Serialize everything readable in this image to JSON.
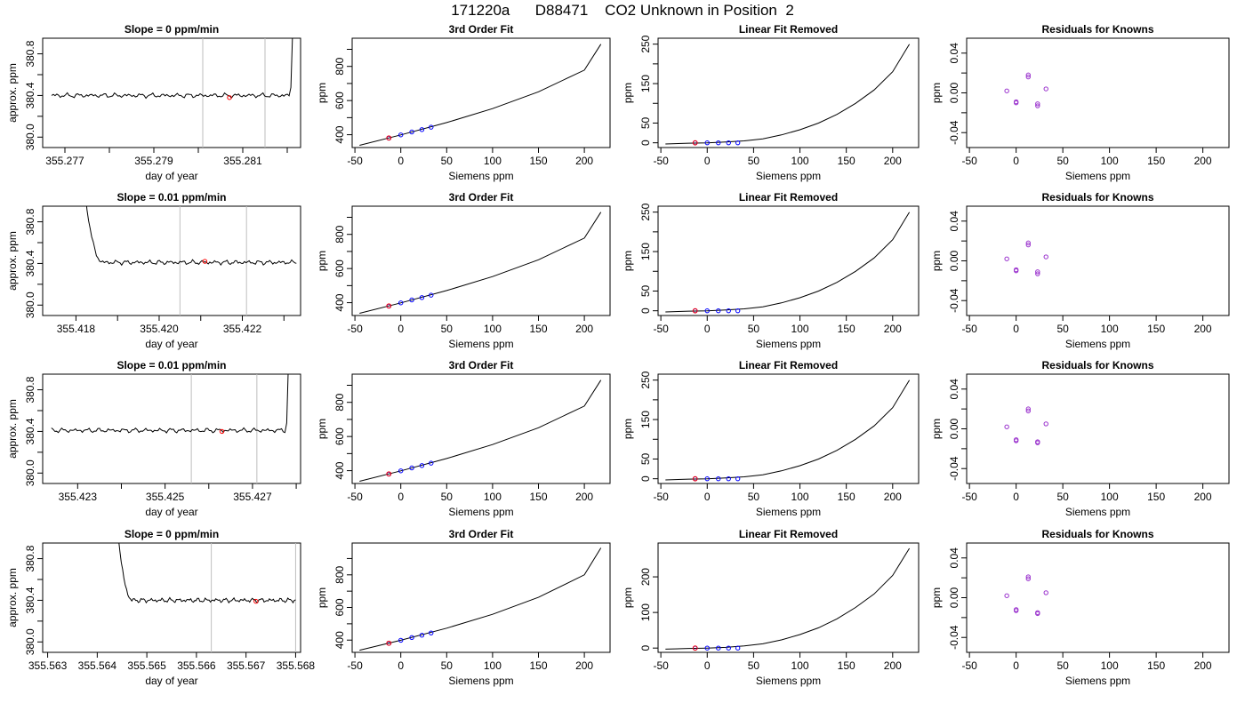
{
  "page_title": "171220a      D88471    CO2 Unknown in Position  2",
  "colors": {
    "line": "#000000",
    "marker": "#ff0000",
    "known": "#0000ff",
    "residual": "#9a32cd",
    "vline": "#bebebe"
  },
  "chart_data": [
    {
      "type": "line",
      "title": "Slope =  0  ppm/min",
      "xlabel": "day of year",
      "ylabel": "approx. ppm",
      "xlim": [
        355.2765,
        355.2823
      ],
      "ylim": [
        379.9,
        380.95
      ],
      "xticks": [
        355.277,
        355.278,
        355.279,
        355.28,
        355.281,
        355.282
      ],
      "xticklabels": [
        "355.277",
        "",
        "355.279",
        "",
        "355.281",
        ""
      ],
      "yticks": [
        380.0,
        380.2,
        380.4,
        380.6,
        380.8
      ],
      "yticklabels": [
        "380.0",
        "",
        "380.4",
        "",
        "380.8"
      ],
      "vlines": [
        355.2801,
        355.2815
      ],
      "series_x_range": [
        355.2767,
        355.2822
      ],
      "series_level": 380.4,
      "rise": {
        "side": "right",
        "at": 355.2821,
        "to": 381.0
      },
      "marker": [
        355.2807,
        380.38
      ]
    },
    {
      "type": "scatter",
      "title": "3rd Order Fit",
      "xlabel": "Siemens ppm",
      "ylabel": "ppm",
      "xlim": [
        -53,
        228
      ],
      "ylim": [
        325,
        965
      ],
      "xticks": [
        -50,
        0,
        50,
        100,
        150,
        200
      ],
      "xticklabels": [
        "-50",
        "0",
        "50",
        "100",
        "150",
        "200"
      ],
      "yticks": [
        400,
        500,
        600,
        700,
        800,
        900
      ],
      "yticklabels": [
        "400",
        "",
        "600",
        "",
        "800",
        ""
      ],
      "curve": {
        "x": [
          -45,
          0,
          50,
          100,
          150,
          200,
          218
        ],
        "y": [
          338,
          399,
          471,
          553,
          651,
          778,
          930
        ]
      },
      "knowns": {
        "x": [
          -13,
          0,
          12,
          23,
          33
        ],
        "y": [
          380,
          399,
          416,
          430,
          444
        ]
      },
      "unknown": {
        "x": [
          -13
        ],
        "y": [
          381
        ]
      }
    },
    {
      "type": "scatter",
      "title": "Linear Fit Removed",
      "xlabel": "Siemens ppm",
      "ylabel": "ppm",
      "xlim": [
        -53,
        228
      ],
      "ylim": [
        -12,
        265
      ],
      "xticks": [
        -50,
        0,
        50,
        100,
        150,
        200
      ],
      "xticklabels": [
        "-50",
        "0",
        "50",
        "100",
        "150",
        "200"
      ],
      "yticks": [
        0,
        50,
        100,
        150,
        200,
        250
      ],
      "yticklabels": [
        "0",
        "50",
        "",
        "150",
        "",
        "250"
      ],
      "curve": {
        "x": [
          -45,
          -20,
          0,
          20,
          40,
          60,
          80,
          100,
          120,
          140,
          160,
          180,
          200,
          218
        ],
        "y": [
          -3,
          -1,
          0,
          2,
          5,
          10,
          20,
          33,
          50,
          72,
          100,
          134,
          180,
          250
        ]
      },
      "knowns": {
        "x": [
          -13,
          0,
          12,
          23,
          33
        ],
        "y": [
          0,
          0,
          0,
          0,
          0
        ]
      },
      "unknown": {
        "x": [
          -13
        ],
        "y": [
          0
        ]
      }
    },
    {
      "type": "scatter",
      "title": "Residuals for Knowns",
      "xlabel": "Siemens ppm",
      "ylabel": "ppm",
      "xlim": [
        -53,
        228
      ],
      "ylim": [
        -0.055,
        0.055
      ],
      "xticks": [
        -50,
        0,
        50,
        100,
        150,
        200
      ],
      "xticklabels": [
        "-50",
        "0",
        "50",
        "100",
        "150",
        "200"
      ],
      "yticks": [
        -0.04,
        -0.02,
        0,
        0.02,
        0.04
      ],
      "yticklabels": [
        "-0.04",
        "",
        "0.00",
        "",
        "0.04"
      ],
      "knowns": {
        "x": [
          -10,
          0,
          0,
          13,
          13,
          23,
          23,
          32
        ],
        "y": [
          0.002,
          -0.009,
          -0.01,
          0.018,
          0.016,
          -0.011,
          -0.013,
          0.004
        ]
      }
    },
    {
      "type": "line",
      "title": "Slope =  0.01  ppm/min",
      "xlabel": "day of year",
      "ylabel": "approx. ppm",
      "xlim": [
        355.4172,
        355.4234
      ],
      "ylim": [
        379.9,
        380.95
      ],
      "xticks": [
        355.418,
        355.419,
        355.42,
        355.421,
        355.422,
        355.423
      ],
      "xticklabels": [
        "355.418",
        "",
        "355.420",
        "",
        "355.422",
        ""
      ],
      "yticks": [
        380.0,
        380.2,
        380.4,
        380.6,
        380.8
      ],
      "yticklabels": [
        "380.0",
        "",
        "380.4",
        "",
        "380.8"
      ],
      "vlines": [
        355.4205,
        355.4221
      ],
      "series_x_range": [
        355.418,
        355.4233
      ],
      "series_level": 380.41,
      "rise": {
        "side": "left",
        "at": 355.4182,
        "to": 381.0
      },
      "marker": [
        355.4211,
        380.42
      ]
    },
    {
      "type": "scatter",
      "title": "3rd Order Fit",
      "xlabel": "Siemens ppm",
      "ylabel": "ppm",
      "xlim": [
        -53,
        228
      ],
      "ylim": [
        325,
        965
      ],
      "xticks": [
        -50,
        0,
        50,
        100,
        150,
        200
      ],
      "xticklabels": [
        "-50",
        "0",
        "50",
        "100",
        "150",
        "200"
      ],
      "yticks": [
        400,
        500,
        600,
        700,
        800,
        900
      ],
      "yticklabels": [
        "400",
        "",
        "600",
        "",
        "800",
        ""
      ],
      "curve": {
        "x": [
          -45,
          0,
          50,
          100,
          150,
          200,
          218
        ],
        "y": [
          338,
          399,
          471,
          553,
          651,
          778,
          930
        ]
      },
      "knowns": {
        "x": [
          -13,
          0,
          12,
          23,
          33
        ],
        "y": [
          380,
          399,
          416,
          430,
          444
        ]
      },
      "unknown": {
        "x": [
          -13
        ],
        "y": [
          381
        ]
      }
    },
    {
      "type": "scatter",
      "title": "Linear Fit Removed",
      "xlabel": "Siemens ppm",
      "ylabel": "ppm",
      "xlim": [
        -53,
        228
      ],
      "ylim": [
        -12,
        265
      ],
      "xticks": [
        -50,
        0,
        50,
        100,
        150,
        200
      ],
      "xticklabels": [
        "-50",
        "0",
        "50",
        "100",
        "150",
        "200"
      ],
      "yticks": [
        0,
        50,
        100,
        150,
        200,
        250
      ],
      "yticklabels": [
        "0",
        "50",
        "",
        "150",
        "",
        "250"
      ],
      "curve": {
        "x": [
          -45,
          -20,
          0,
          20,
          40,
          60,
          80,
          100,
          120,
          140,
          160,
          180,
          200,
          218
        ],
        "y": [
          -3,
          -1,
          0,
          2,
          5,
          10,
          20,
          33,
          50,
          72,
          100,
          134,
          180,
          250
        ]
      },
      "knowns": {
        "x": [
          -13,
          0,
          12,
          23,
          33
        ],
        "y": [
          0,
          0,
          0,
          0,
          0
        ]
      },
      "unknown": {
        "x": [
          -13
        ],
        "y": [
          0
        ]
      }
    },
    {
      "type": "scatter",
      "title": "Residuals for Knowns",
      "xlabel": "Siemens ppm",
      "ylabel": "ppm",
      "xlim": [
        -53,
        228
      ],
      "ylim": [
        -0.055,
        0.055
      ],
      "xticks": [
        -50,
        0,
        50,
        100,
        150,
        200
      ],
      "xticklabels": [
        "-50",
        "0",
        "50",
        "100",
        "150",
        "200"
      ],
      "yticks": [
        -0.04,
        -0.02,
        0,
        0.02,
        0.04
      ],
      "yticklabels": [
        "-0.04",
        "",
        "0.00",
        "",
        "0.04"
      ],
      "knowns": {
        "x": [
          -10,
          0,
          0,
          13,
          13,
          23,
          23,
          32
        ],
        "y": [
          0.002,
          -0.009,
          -0.01,
          0.018,
          0.016,
          -0.011,
          -0.013,
          0.004
        ]
      }
    },
    {
      "type": "line",
      "title": "Slope =  0.01  ppm/min",
      "xlabel": "day of year",
      "ylabel": "approx. ppm",
      "xlim": [
        355.4222,
        355.4281
      ],
      "ylim": [
        379.9,
        380.95
      ],
      "xticks": [
        355.423,
        355.424,
        355.425,
        355.426,
        355.427,
        355.428
      ],
      "xticklabels": [
        "355.423",
        "",
        "355.425",
        "",
        "355.427",
        ""
      ],
      "yticks": [
        380.0,
        380.2,
        380.4,
        380.6,
        380.8
      ],
      "yticklabels": [
        "380.0",
        "",
        "380.4",
        "",
        "380.8"
      ],
      "vlines": [
        355.4256,
        355.4271
      ],
      "series_x_range": [
        355.4224,
        355.4279
      ],
      "series_level": 380.41,
      "rise": {
        "side": "right",
        "at": 355.4278,
        "to": 381.0
      },
      "marker": [
        355.4263,
        380.4
      ]
    },
    {
      "type": "scatter",
      "title": "3rd Order Fit",
      "xlabel": "Siemens ppm",
      "ylabel": "ppm",
      "xlim": [
        -53,
        228
      ],
      "ylim": [
        325,
        965
      ],
      "xticks": [
        -50,
        0,
        50,
        100,
        150,
        200
      ],
      "xticklabels": [
        "-50",
        "0",
        "50",
        "100",
        "150",
        "200"
      ],
      "yticks": [
        400,
        500,
        600,
        700,
        800,
        900
      ],
      "yticklabels": [
        "400",
        "",
        "600",
        "",
        "800",
        ""
      ],
      "curve": {
        "x": [
          -45,
          0,
          50,
          100,
          150,
          200,
          218
        ],
        "y": [
          338,
          399,
          471,
          553,
          651,
          778,
          930
        ]
      },
      "knowns": {
        "x": [
          -13,
          0,
          12,
          23,
          33
        ],
        "y": [
          380,
          399,
          416,
          430,
          444
        ]
      },
      "unknown": {
        "x": [
          -13
        ],
        "y": [
          381
        ]
      }
    },
    {
      "type": "scatter",
      "title": "Linear Fit Removed",
      "xlabel": "Siemens ppm",
      "ylabel": "ppm",
      "xlim": [
        -53,
        228
      ],
      "ylim": [
        -12,
        265
      ],
      "xticks": [
        -50,
        0,
        50,
        100,
        150,
        200
      ],
      "xticklabels": [
        "-50",
        "0",
        "50",
        "100",
        "150",
        "200"
      ],
      "yticks": [
        0,
        50,
        100,
        150,
        200,
        250
      ],
      "yticklabels": [
        "0",
        "50",
        "",
        "150",
        "",
        "250"
      ],
      "curve": {
        "x": [
          -45,
          -20,
          0,
          20,
          40,
          60,
          80,
          100,
          120,
          140,
          160,
          180,
          200,
          218
        ],
        "y": [
          -3,
          -1,
          0,
          2,
          5,
          10,
          20,
          33,
          50,
          72,
          100,
          134,
          180,
          250
        ]
      },
      "knowns": {
        "x": [
          -13,
          0,
          12,
          23,
          33
        ],
        "y": [
          0,
          0,
          0,
          0,
          0
        ]
      },
      "unknown": {
        "x": [
          -13
        ],
        "y": [
          0
        ]
      }
    },
    {
      "type": "scatter",
      "title": "Residuals for Knowns",
      "xlabel": "Siemens ppm",
      "ylabel": "ppm",
      "xlim": [
        -53,
        228
      ],
      "ylim": [
        -0.055,
        0.055
      ],
      "xticks": [
        -50,
        0,
        50,
        100,
        150,
        200
      ],
      "xticklabels": [
        "-50",
        "0",
        "50",
        "100",
        "150",
        "200"
      ],
      "yticks": [
        -0.04,
        -0.02,
        0,
        0.02,
        0.04
      ],
      "yticklabels": [
        "-0.04",
        "",
        "0.00",
        "",
        "0.04"
      ],
      "knowns": {
        "x": [
          -10,
          0,
          0,
          13,
          13,
          23,
          23,
          32
        ],
        "y": [
          0.002,
          -0.011,
          -0.012,
          0.02,
          0.018,
          -0.013,
          -0.014,
          0.005
        ]
      }
    },
    {
      "type": "line",
      "title": "Slope =  0  ppm/min",
      "xlabel": "day of year",
      "ylabel": "approx. ppm",
      "xlim": [
        355.5629,
        355.5681
      ],
      "ylim": [
        379.9,
        380.95
      ],
      "xticks": [
        355.563,
        355.564,
        355.565,
        355.566,
        355.567,
        355.568
      ],
      "xticklabels": [
        "355.563",
        "355.564",
        "355.565",
        "355.566",
        "355.567",
        "355.568"
      ],
      "yticks": [
        380.0,
        380.2,
        380.4,
        380.6,
        380.8
      ],
      "yticklabels": [
        "380.0",
        "",
        "380.4",
        "",
        "380.8"
      ],
      "vlines": [
        355.5663,
        355.568
      ],
      "series_x_range": [
        355.5643,
        355.568
      ],
      "series_level": 380.4,
      "rise": {
        "side": "left",
        "at": 355.5644,
        "to": 381.0
      },
      "marker": [
        355.5672,
        380.39
      ]
    },
    {
      "type": "scatter",
      "title": "3rd Order Fit",
      "xlabel": "Siemens ppm",
      "ylabel": "ppm",
      "xlim": [
        -53,
        228
      ],
      "ylim": [
        325,
        995
      ],
      "xticks": [
        -50,
        0,
        50,
        100,
        150,
        200
      ],
      "xticklabels": [
        "-50",
        "0",
        "50",
        "100",
        "150",
        "200"
      ],
      "yticks": [
        400,
        500,
        600,
        700,
        800,
        900
      ],
      "yticklabels": [
        "400",
        "",
        "600",
        "",
        "800",
        ""
      ],
      "curve": {
        "x": [
          -45,
          0,
          50,
          100,
          150,
          200,
          218
        ],
        "y": [
          338,
          399,
          473,
          558,
          662,
          800,
          965
        ]
      },
      "knowns": {
        "x": [
          -13,
          0,
          12,
          23,
          33
        ],
        "y": [
          380,
          399,
          416,
          430,
          444
        ]
      },
      "unknown": {
        "x": [
          -13
        ],
        "y": [
          381
        ]
      }
    },
    {
      "type": "scatter",
      "title": "Linear Fit Removed",
      "xlabel": "Siemens ppm",
      "ylabel": "ppm",
      "xlim": [
        -53,
        228
      ],
      "ylim": [
        -12,
        295
      ],
      "xticks": [
        -50,
        0,
        50,
        100,
        150,
        200
      ],
      "xticklabels": [
        "-50",
        "0",
        "50",
        "100",
        "150",
        "200"
      ],
      "yticks": [
        0,
        100,
        200
      ],
      "yticklabels": [
        "0",
        "100",
        "200"
      ],
      "curve": {
        "x": [
          -45,
          -20,
          0,
          20,
          40,
          60,
          80,
          100,
          120,
          140,
          160,
          180,
          200,
          218
        ],
        "y": [
          -3,
          -1,
          0,
          2,
          6,
          12,
          23,
          38,
          57,
          82,
          114,
          152,
          204,
          280
        ]
      },
      "knowns": {
        "x": [
          -13,
          0,
          12,
          23,
          33
        ],
        "y": [
          0,
          0,
          0,
          0,
          0
        ]
      },
      "unknown": {
        "x": [
          -13
        ],
        "y": [
          0
        ]
      }
    },
    {
      "type": "scatter",
      "title": "Residuals for Knowns",
      "xlabel": "Siemens ppm",
      "ylabel": "ppm",
      "xlim": [
        -53,
        228
      ],
      "ylim": [
        -0.055,
        0.055
      ],
      "xticks": [
        -50,
        0,
        50,
        100,
        150,
        200
      ],
      "xticklabels": [
        "-50",
        "0",
        "50",
        "100",
        "150",
        "200"
      ],
      "yticks": [
        -0.04,
        -0.02,
        0,
        0.02,
        0.04
      ],
      "yticklabels": [
        "-0.04",
        "",
        "0.00",
        "",
        "0.04"
      ],
      "knowns": {
        "x": [
          -10,
          0,
          0,
          13,
          13,
          23,
          23,
          32
        ],
        "y": [
          0.002,
          -0.012,
          -0.013,
          0.021,
          0.019,
          -0.015,
          -0.016,
          0.005
        ]
      }
    }
  ]
}
